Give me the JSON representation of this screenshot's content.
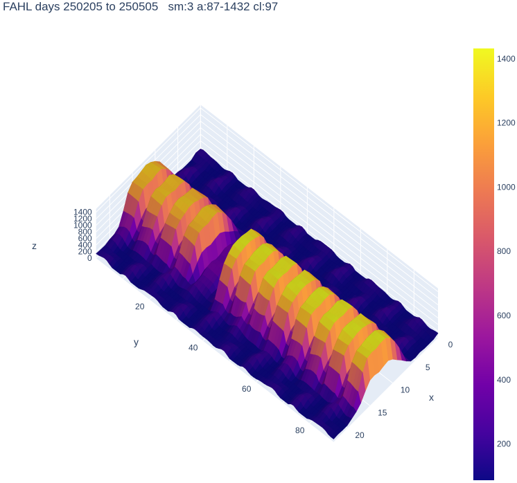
{
  "title": "FAHL days 250205 to 250505   sm:3 a:87-1432 cl:97",
  "chart_data": {
    "type": "surface3d",
    "title": "FAHL days 250205 to 250505   sm:3 a:87-1432 cl:97",
    "xlabel": "x",
    "ylabel": "y",
    "zlabel": "z",
    "x_range": [
      0,
      23
    ],
    "y_range": [
      0,
      89
    ],
    "z_range": [
      0,
      1500
    ],
    "x_ticks": [
      0,
      5,
      10,
      15,
      20
    ],
    "y_ticks": [
      20,
      40,
      60,
      80
    ],
    "z_ticks": [
      0,
      200,
      400,
      600,
      800,
      1000,
      1200,
      1400
    ],
    "color_range": [
      87,
      1432
    ],
    "colorbar_ticks": [
      200,
      400,
      600,
      800,
      1000,
      1200,
      1400
    ],
    "colorscale": "plasma",
    "colorscale_stops": [
      "#0d0887",
      "#46039f",
      "#7201a8",
      "#9c179e",
      "#bd3786",
      "#d8576b",
      "#ed7953",
      "#fb9f3a",
      "#fdca26",
      "#f0f921"
    ],
    "surface_description": "Rows y=0..89 are days; columns x=0..23 are hours. Daytime ridge (x≈7..18) peaks ~1000-1430; night values ~90-400; low-activity trough around y≈28-35.",
    "ridge_rows": [
      {
        "y_start": 0,
        "y_end": 27,
        "peak": 1280
      },
      {
        "y_start": 27,
        "y_end": 36,
        "peak": 380
      },
      {
        "y_start": 36,
        "y_end": 89,
        "peak": 1432
      }
    ]
  }
}
